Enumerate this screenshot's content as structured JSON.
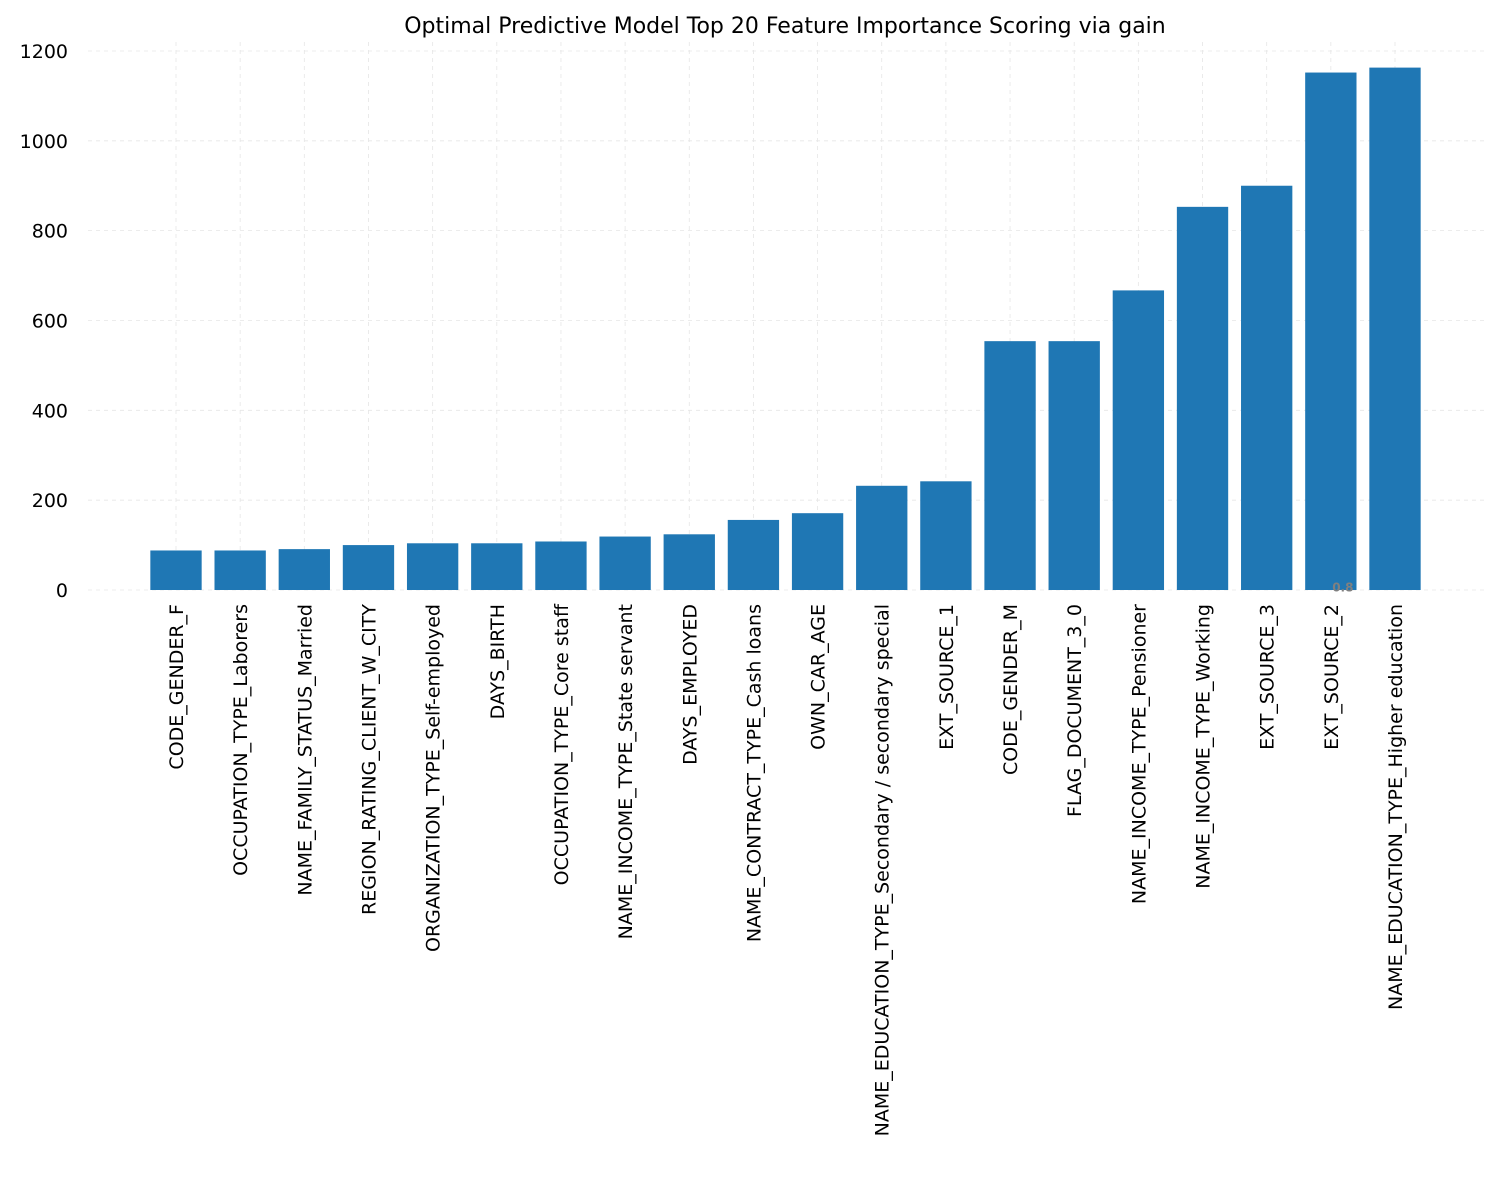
{
  "chart_data": {
    "type": "bar",
    "title": "Optimal Predictive Model Top 20 Feature Importance Scoring via gain",
    "xlabel": "",
    "ylabel": "",
    "ylim": [
      0,
      1220
    ],
    "yticks": [
      0,
      200,
      400,
      600,
      800,
      1000,
      1200
    ],
    "grid": true,
    "bar_color": "#1f77b4",
    "categories": [
      "CODE_GENDER_F",
      "OCCUPATION_TYPE_Laborers",
      "NAME_FAMILY_STATUS_Married",
      "REGION_RATING_CLIENT_W_CITY",
      "ORGANIZATION_TYPE_Self-employed",
      "DAYS_BIRTH",
      "OCCUPATION_TYPE_Core staff",
      "NAME_INCOME_TYPE_State servant",
      "DAYS_EMPLOYED",
      "NAME_CONTRACT_TYPE_Cash loans",
      "OWN_CAR_AGE",
      "NAME_EDUCATION_TYPE_Secondary / secondary special",
      "EXT_SOURCE_1",
      "CODE_GENDER_M",
      "FLAG_DOCUMENT_3_0",
      "NAME_INCOME_TYPE_Pensioner",
      "NAME_INCOME_TYPE_Working",
      "EXT_SOURCE_3",
      "EXT_SOURCE_2",
      "NAME_EDUCATION_TYPE_Higher education"
    ],
    "values": [
      88,
      88,
      91,
      100,
      104,
      104,
      108,
      119,
      124,
      156,
      171,
      232,
      242,
      554,
      554,
      667,
      853,
      900,
      1152,
      1163
    ],
    "annotations": [
      {
        "text": "0.8",
        "category": "EXT_SOURCE_2",
        "y": 10
      }
    ]
  }
}
